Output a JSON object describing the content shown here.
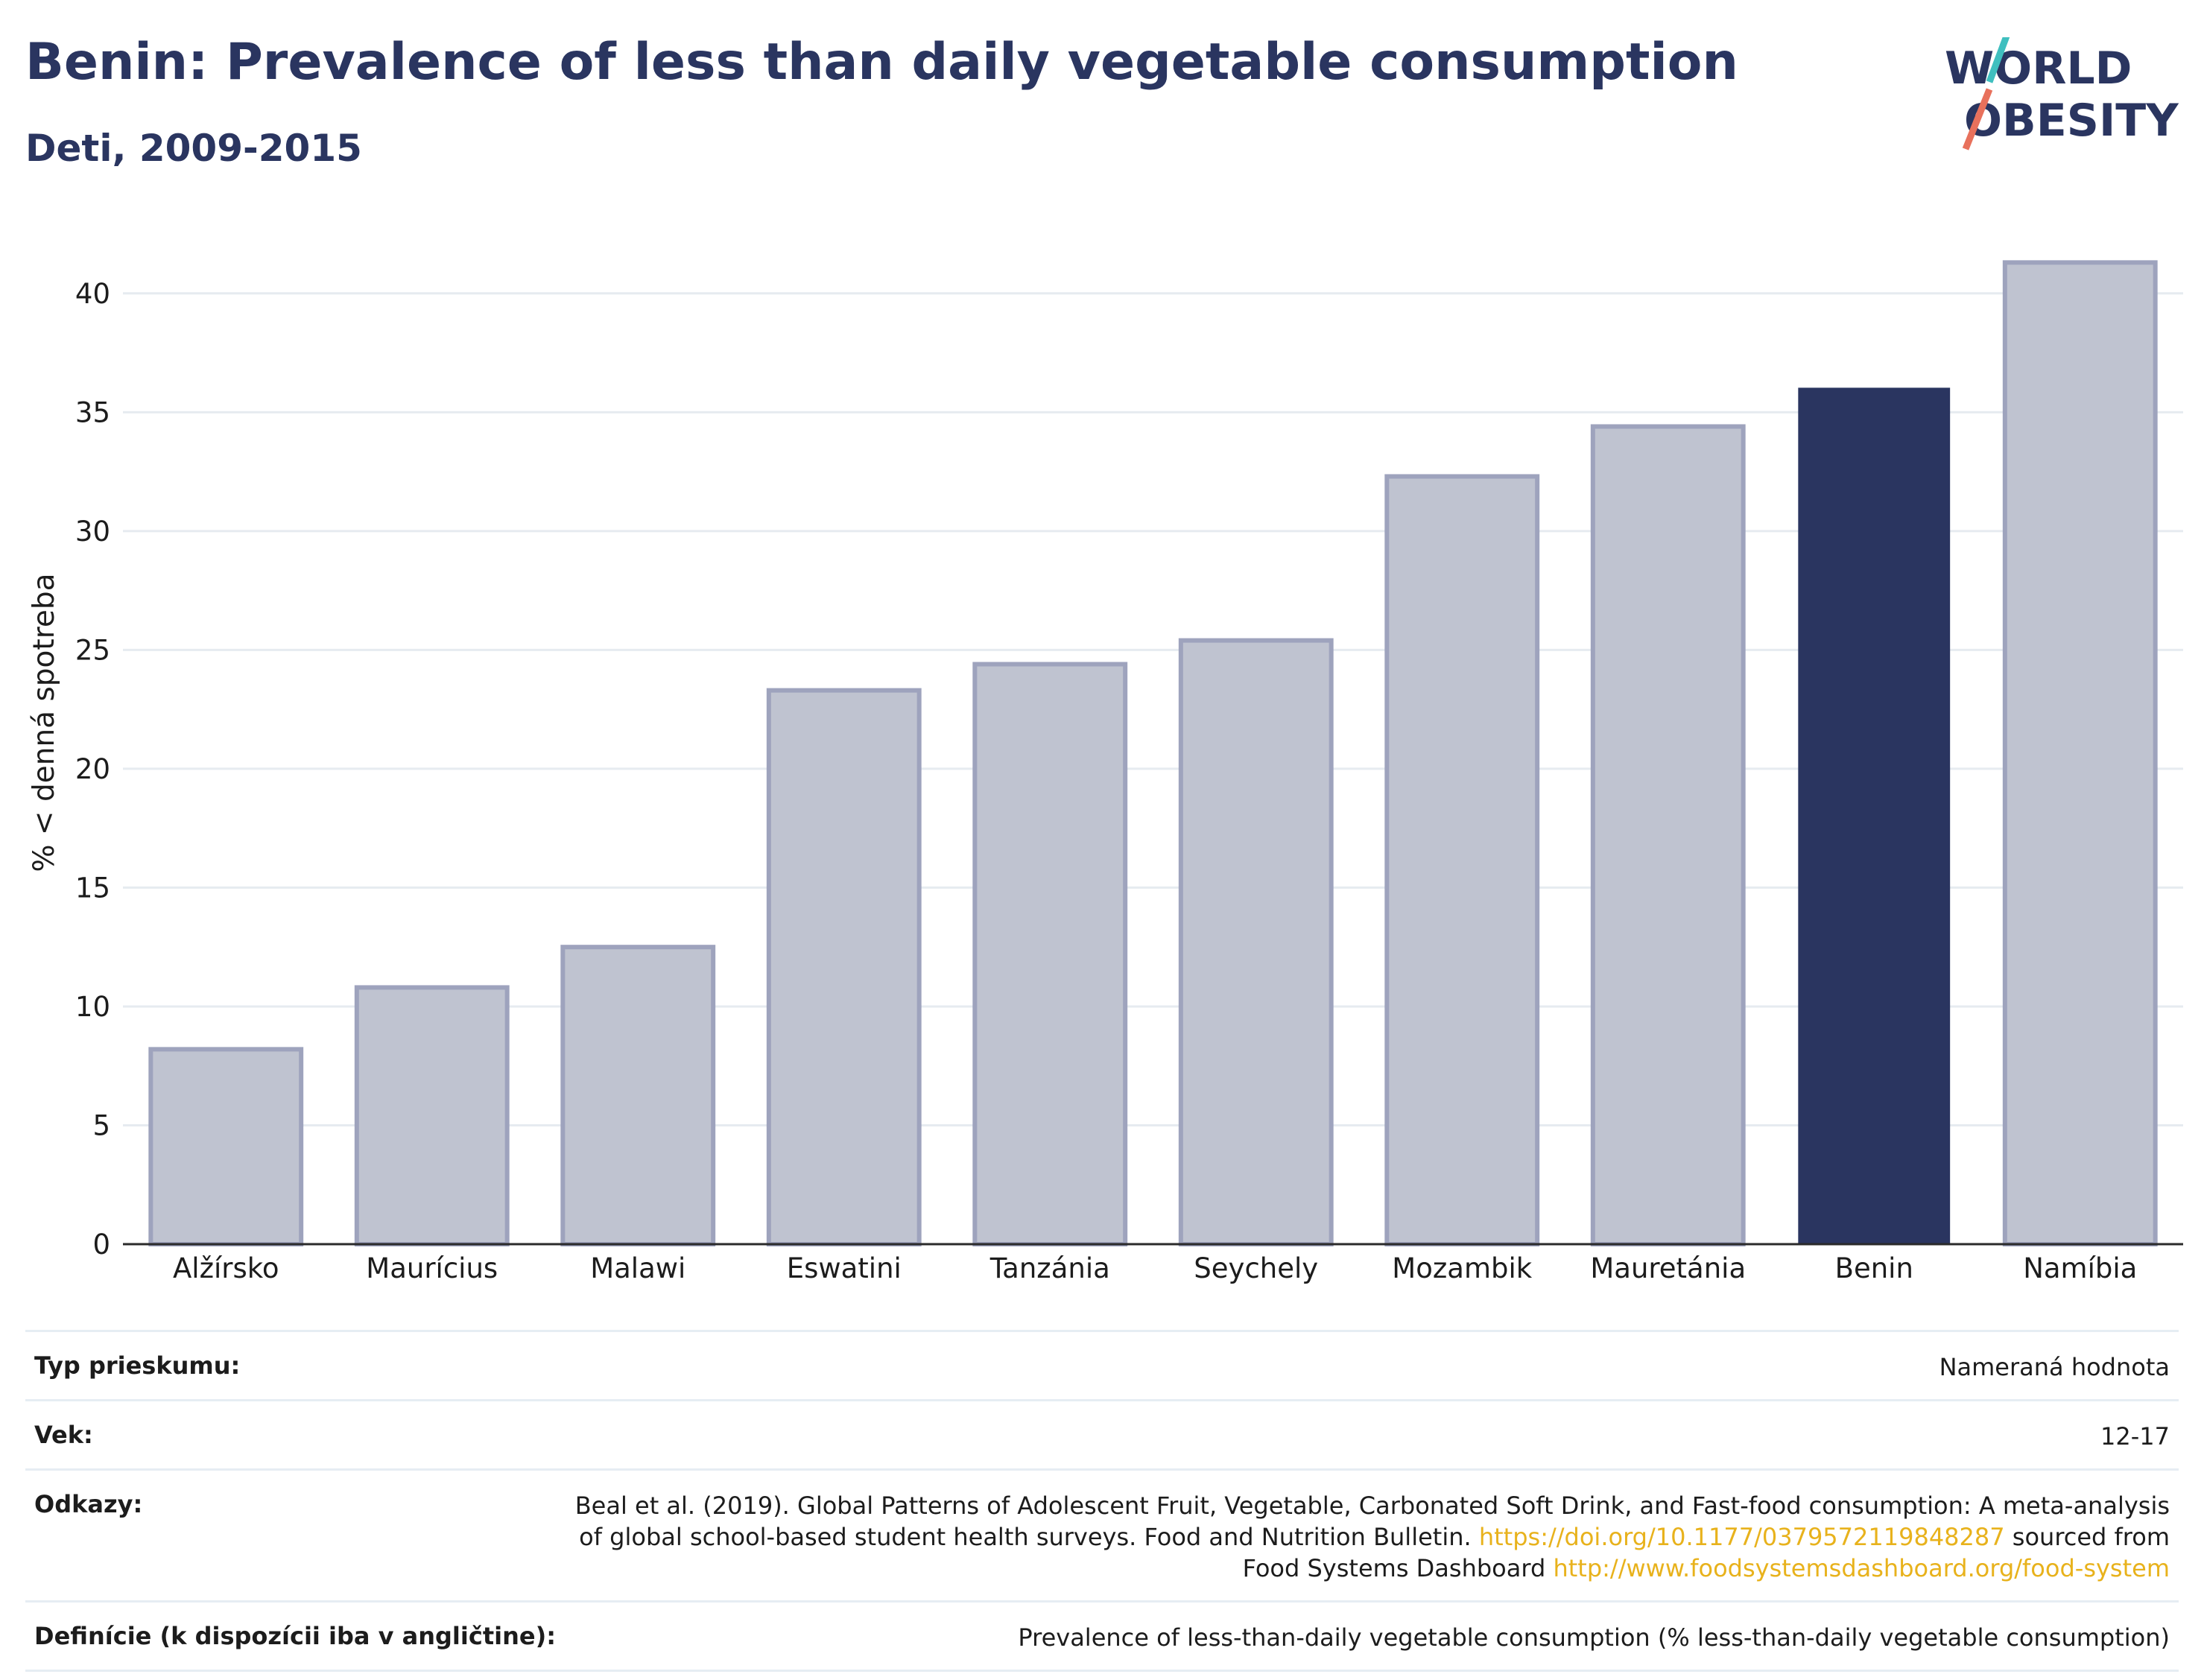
{
  "header": {
    "title": "Benin: Prevalence of less than daily vegetable consumption",
    "subtitle": "Deti, 2009-2015"
  },
  "logo": {
    "line1": "WORLD",
    "line2": "OBESITY",
    "accent_colors": [
      "#3fbfbf",
      "#e8715c"
    ]
  },
  "chart_data": {
    "type": "bar",
    "ylabel": "% < denná spotreba",
    "xlabel": "",
    "ylim": [
      0,
      42
    ],
    "yticks": [
      0,
      5,
      10,
      15,
      20,
      25,
      30,
      35,
      40
    ],
    "grid": true,
    "categories": [
      "Alžírsko",
      "Maurícius",
      "Malawi",
      "Eswatini",
      "Tanzánia",
      "Seychely",
      "Mozambik",
      "Mauretánia",
      "Benin",
      "Namíbia"
    ],
    "values": [
      8.2,
      10.8,
      12.5,
      23.3,
      24.4,
      25.4,
      32.3,
      34.4,
      36.0,
      41.3
    ],
    "highlight": "Benin",
    "colors": {
      "highlight": "#2a3560",
      "other": "#bfc3d0",
      "other_border": "#9ea3bd"
    }
  },
  "meta": {
    "survey_label": "Typ prieskumu:",
    "survey_value": "Nameraná hodnota",
    "age_label": "Vek:",
    "age_value": "12-17",
    "refs_label": "Odkazy:",
    "refs_text1": "Beal et al. (2019). Global Patterns of Adolescent Fruit, Vegetable, Carbonated Soft Drink, and Fast-food consumption: A meta-analysis of global school-based student health surveys. Food and Nutrition Bulletin.",
    "refs_link1": "https://doi.org/10.1177/0379572119848287",
    "refs_text2": "sourced from Food Systems Dashboard",
    "refs_link2": "http://www.foodsystemsdashboard.org/food-system",
    "def_label": "Definície (k dispozícii iba v angličtine):",
    "def_value": "Prevalence of less-than-daily vegetable consumption (% less-than-daily vegetable consumption)"
  }
}
